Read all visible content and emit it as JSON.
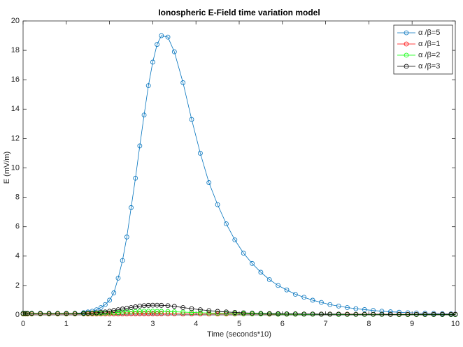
{
  "chart_data": {
    "type": "line",
    "title": "Ionospheric E-Field time variation model",
    "x_label": "Time (seconds*10)",
    "y_label": "E (mV/m)",
    "x": [
      0,
      0.05,
      0.1,
      0.2,
      0.4,
      0.6,
      0.8,
      1,
      1.2,
      1.4,
      1.5,
      1.6,
      1.7,
      1.8,
      1.9,
      2,
      2.1,
      2.2,
      2.3,
      2.4,
      2.5,
      2.6,
      2.7,
      2.8,
      2.9,
      3,
      3.1,
      3.2,
      3.35,
      3.5,
      3.7,
      3.9,
      4.1,
      4.3,
      4.5,
      4.7,
      4.9,
      5.1,
      5.3,
      5.5,
      5.7,
      5.9,
      6.1,
      6.3,
      6.5,
      6.7,
      6.9,
      7.1,
      7.3,
      7.5,
      7.7,
      7.9,
      8.1,
      8.3,
      8.5,
      8.7,
      8.9,
      9.1,
      9.3,
      9.5,
      9.7,
      9.9,
      10
    ],
    "series": [
      {
        "name": "α /β=5",
        "color": "#0072bd",
        "values": [
          0.1,
          0.1,
          0.1,
          0.1,
          0.1,
          0.1,
          0.1,
          0.1,
          0.1,
          0.15,
          0.2,
          0.25,
          0.35,
          0.5,
          0.7,
          1,
          1.5,
          2.5,
          3.7,
          5.3,
          7.3,
          9.3,
          11.5,
          13.6,
          15.6,
          17.2,
          18.4,
          19,
          18.9,
          17.9,
          15.8,
          13.3,
          11,
          9,
          7.5,
          6.2,
          5.1,
          4.2,
          3.5,
          2.9,
          2.4,
          2,
          1.7,
          1.4,
          1.2,
          1,
          0.85,
          0.7,
          0.6,
          0.5,
          0.42,
          0.36,
          0.3,
          0.25,
          0.21,
          0.18,
          0.15,
          0.13,
          0.11,
          0.1,
          0.08,
          0.07,
          0.06
        ]
      },
      {
        "name": "α /β=1",
        "color": "#ff0000",
        "values": [
          0.06,
          0.06,
          0.06,
          0.06,
          0.06,
          0.06,
          0.06,
          0.06,
          0.06,
          0.06,
          0.06,
          0.06,
          0.06,
          0.06,
          0.06,
          0.06,
          0.06,
          0.06,
          0.06,
          0.06,
          0.07,
          0.07,
          0.07,
          0.07,
          0.07,
          0.07,
          0.07,
          0.07,
          0.07,
          0.07,
          0.06,
          0.06,
          0.06,
          0.06,
          0.06,
          0.06,
          0.06,
          0.06,
          0.06,
          0.06,
          0.05,
          0.05,
          0.05,
          0.05,
          0.05,
          0.05,
          0.05,
          0.05,
          0.05,
          0.05,
          0.04,
          0.04,
          0.04,
          0.04,
          0.04,
          0.04,
          0.04,
          0.04,
          0.04,
          0.04,
          0.04,
          0.04,
          0.04
        ]
      },
      {
        "name": "α /β=2",
        "color": "#00ff00",
        "values": [
          0.08,
          0.08,
          0.08,
          0.08,
          0.08,
          0.08,
          0.08,
          0.08,
          0.08,
          0.08,
          0.09,
          0.1,
          0.1,
          0.11,
          0.12,
          0.13,
          0.15,
          0.17,
          0.19,
          0.21,
          0.22,
          0.23,
          0.24,
          0.25,
          0.25,
          0.25,
          0.24,
          0.24,
          0.23,
          0.21,
          0.19,
          0.17,
          0.15,
          0.13,
          0.11,
          0.1,
          0.09,
          0.08,
          0.07,
          0.06,
          0.06,
          0.05,
          0.05,
          0.05,
          0.04,
          0.04,
          0.04,
          0.04,
          0.03,
          0.03,
          0.03,
          0.03,
          0.03,
          0.03,
          0.03,
          0.02,
          0.02,
          0.02,
          0.02,
          0.02,
          0.02,
          0.02,
          0.02
        ]
      },
      {
        "name": "α /β=3",
        "color": "#000000",
        "values": [
          0.1,
          0.1,
          0.1,
          0.1,
          0.1,
          0.1,
          0.1,
          0.1,
          0.1,
          0.11,
          0.12,
          0.13,
          0.15,
          0.18,
          0.2,
          0.25,
          0.3,
          0.35,
          0.4,
          0.45,
          0.5,
          0.55,
          0.6,
          0.63,
          0.65,
          0.66,
          0.66,
          0.65,
          0.63,
          0.58,
          0.5,
          0.42,
          0.35,
          0.29,
          0.24,
          0.2,
          0.17,
          0.14,
          0.12,
          0.1,
          0.09,
          0.08,
          0.07,
          0.07,
          0.06,
          0.06,
          0.05,
          0.05,
          0.05,
          0.04,
          0.04,
          0.04,
          0.04,
          0.04,
          0.03,
          0.03,
          0.03,
          0.03,
          0.03,
          0.03,
          0.03,
          0.03,
          0.03
        ]
      }
    ],
    "xlim": [
      0,
      10
    ],
    "xticks": [
      0,
      1,
      2,
      3,
      4,
      5,
      6,
      7,
      8,
      9,
      10
    ],
    "ylim": [
      0,
      20
    ],
    "yticks": [
      0,
      2,
      4,
      6,
      8,
      10,
      12,
      14,
      16,
      18,
      20
    ],
    "grid": false,
    "legend": "top-right"
  }
}
